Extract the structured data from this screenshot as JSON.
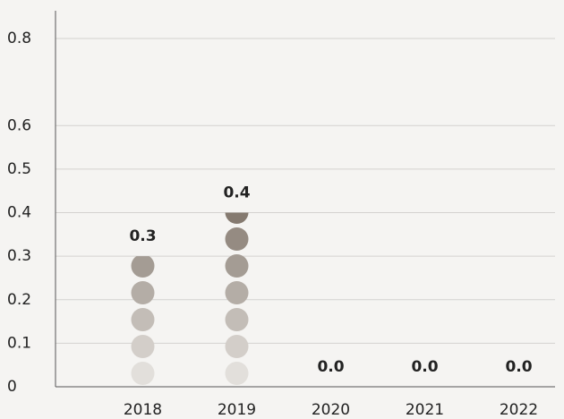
{
  "chart_data": {
    "type": "pictogram",
    "categories": [
      "2018",
      "2019",
      "2020",
      "2021",
      "2022"
    ],
    "values": [
      0.3,
      0.4,
      0.0,
      0.0,
      0.0
    ],
    "value_labels": [
      "0.3",
      "0.4",
      "0.0",
      "0.0",
      "0.0"
    ],
    "color_light": "#e2dfdb",
    "color_dark": "#857a70",
    "ylim": [
      0,
      0.8
    ],
    "yticks": [
      0,
      0.1,
      0.2,
      0.3,
      0.4,
      0.5,
      0.6,
      0.8
    ],
    "grid": true
  }
}
